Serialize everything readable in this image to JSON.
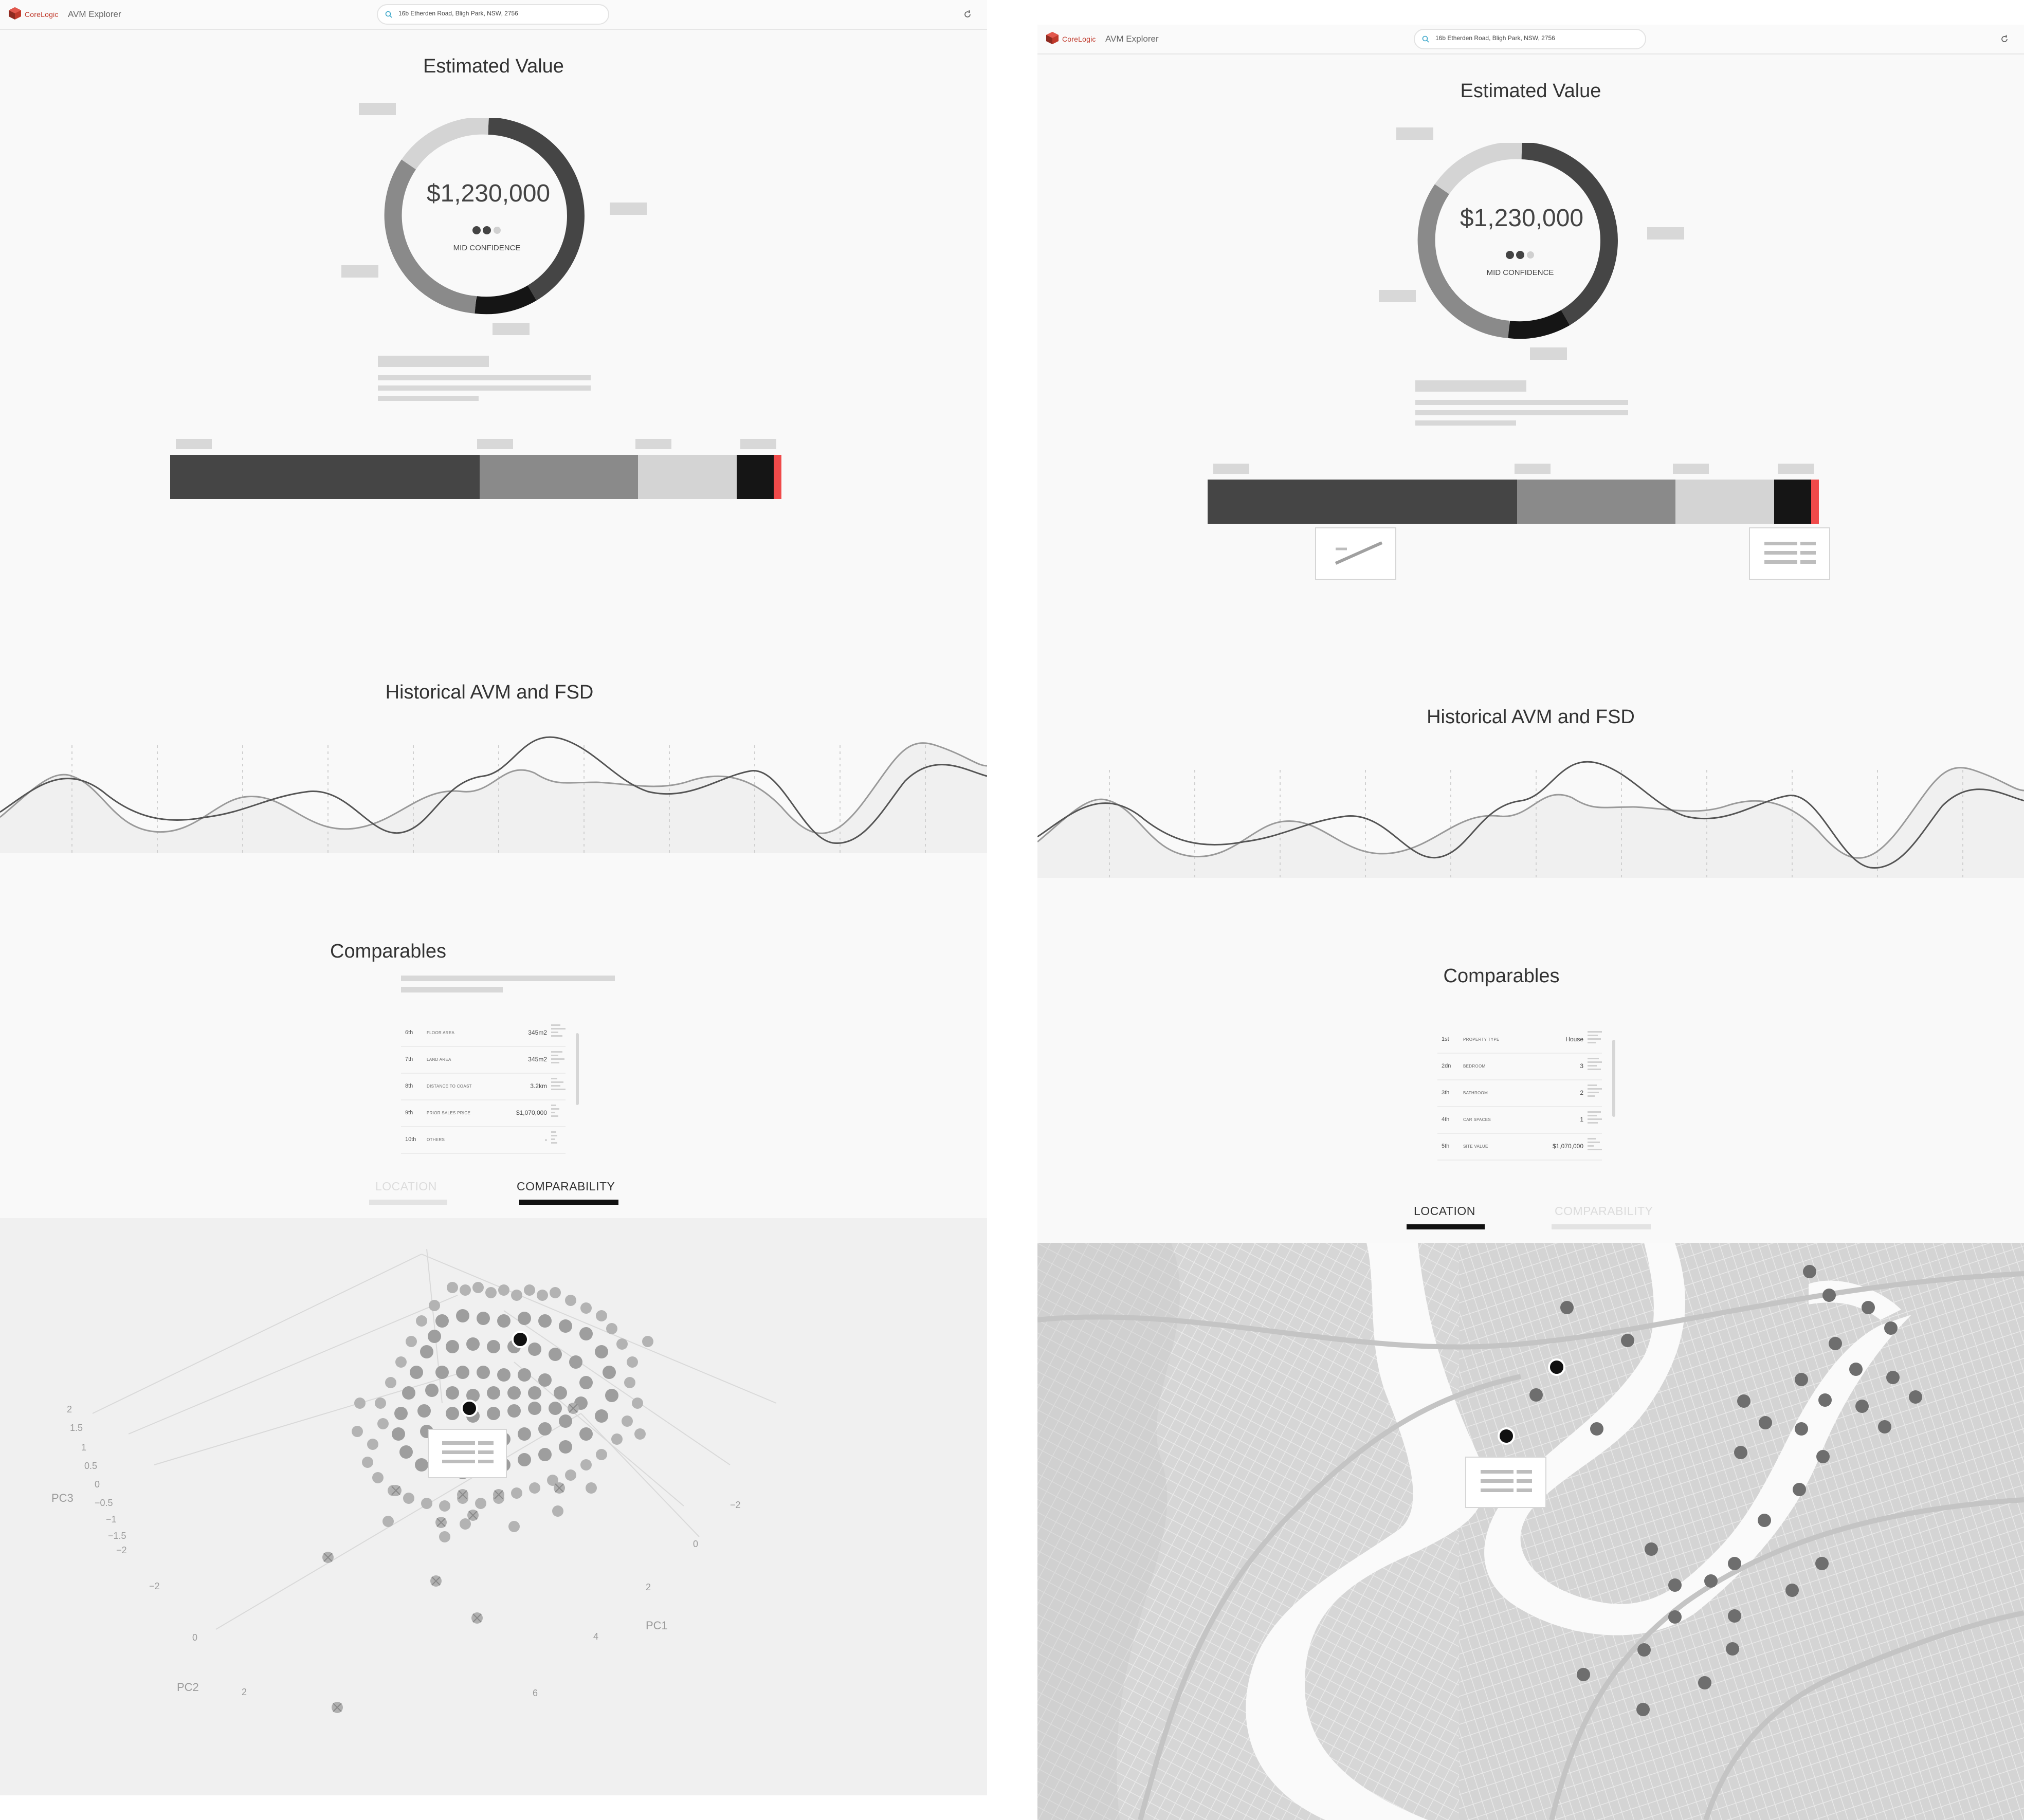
{
  "app": {
    "logo_text": "CoreLogic",
    "title": "AVM Explorer",
    "search_value": "16b Etherden Road, Bligh Park, NSW, 2756"
  },
  "estimated_value": {
    "title": "Estimated Value",
    "amount": "$1,230,000",
    "confidence": "MID CONFIDENCE"
  },
  "historical": {
    "title": "Historical AVM and FSD"
  },
  "comparables": {
    "title": "Comparables",
    "left_rows": [
      {
        "rank": "6th",
        "label": "FLOOR AREA",
        "value": "345m2"
      },
      {
        "rank": "7th",
        "label": "LAND AREA",
        "value": "345m2"
      },
      {
        "rank": "8th",
        "label": "DISTANCE TO COAST",
        "value": "3.2km"
      },
      {
        "rank": "9th",
        "label": "PRIOR SALES PRICE",
        "value": "$1,070,000"
      },
      {
        "rank": "10th",
        "label": "OTHERS",
        "value": "-"
      }
    ],
    "right_rows": [
      {
        "rank": "1st",
        "label": "PROPERTY TYPE",
        "value": "House"
      },
      {
        "rank": "2dn",
        "label": "BEDROOM",
        "value": "3"
      },
      {
        "rank": "3th",
        "label": "BATHROOM",
        "value": "2"
      },
      {
        "rank": "4th",
        "label": "CAR SPACES",
        "value": "1"
      },
      {
        "rank": "5th",
        "label": "SITE VALUE",
        "value": "$1,070,000"
      }
    ]
  },
  "tabs": {
    "location": "LOCATION",
    "comparability": "COMPARABILITY"
  },
  "plot3d": {
    "axis_pc1": "PC1",
    "axis_pc2": "PC2",
    "axis_pc3": "PC3",
    "pc3_ticks": [
      "2",
      "1.5",
      "1",
      "0.5",
      "0",
      "−0.5",
      "−1",
      "−1.5",
      "−2"
    ],
    "pc1_ticks": [
      "−2",
      "0",
      "2",
      "4",
      "6"
    ],
    "pc2_ticks": [
      "−2",
      "0",
      "2"
    ]
  },
  "colors": {
    "dark": "#454545",
    "mid": "#8a8a8a",
    "light": "#d4d4d4",
    "black": "#151515",
    "red": "#f04a4a"
  }
}
